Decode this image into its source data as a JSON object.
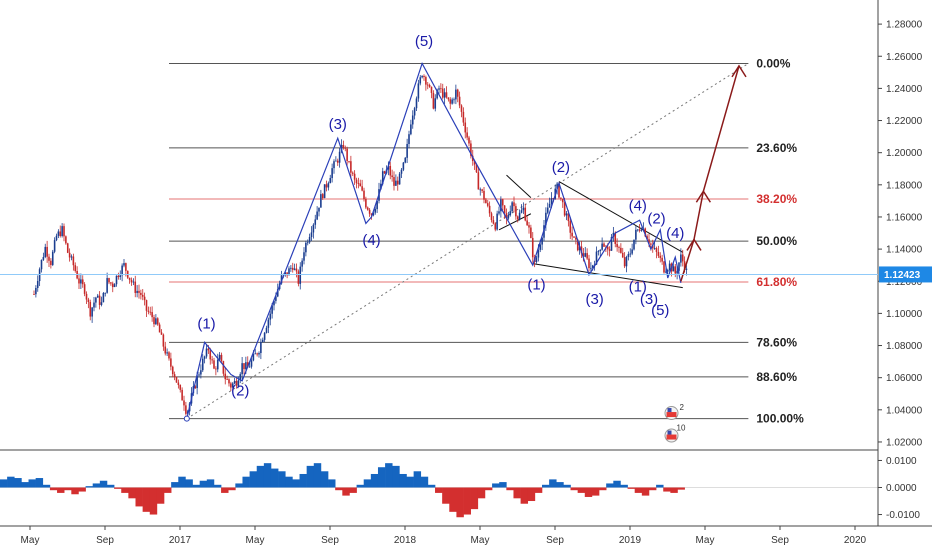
{
  "chart_data": {
    "type": "candlestick",
    "price_axis": {
      "ticks": [
        "1.28000",
        "1.26000",
        "1.24000",
        "1.22000",
        "1.20000",
        "1.18000",
        "1.16000",
        "1.14000",
        "1.12000",
        "1.10000",
        "1.08000",
        "1.06000",
        "1.04000",
        "1.02000"
      ],
      "ylim": [
        1.015,
        1.295
      ]
    },
    "current_price": {
      "label": "1.12423",
      "value": 1.12423,
      "color": "#1e88e5"
    },
    "time_axis": {
      "labels": [
        {
          "text": "May",
          "t": 0
        },
        {
          "text": "Sep",
          "t": 4
        },
        {
          "text": "2017",
          "t": 8
        },
        {
          "text": "May",
          "t": 12
        },
        {
          "text": "Sep",
          "t": 16
        },
        {
          "text": "2018",
          "t": 20
        },
        {
          "text": "May",
          "t": 24
        },
        {
          "text": "Sep",
          "t": 28
        },
        {
          "text": "2019",
          "t": 32
        },
        {
          "text": "May",
          "t": 36
        },
        {
          "text": "Sep",
          "t": 40
        },
        {
          "text": "2020",
          "t": 44
        }
      ]
    },
    "fib_levels": [
      {
        "label": "0.00%",
        "value": 1.2555,
        "color": "#555555",
        "text_color": "#222222"
      },
      {
        "label": "23.60%",
        "value": 1.203,
        "color": "#555555",
        "text_color": "#222222"
      },
      {
        "label": "38.20%",
        "value": 1.1712,
        "color": "#e57373",
        "text_color": "#d32f2f"
      },
      {
        "label": "50.00%",
        "value": 1.145,
        "color": "#555555",
        "text_color": "#222222"
      },
      {
        "label": "61.80%",
        "value": 1.1195,
        "color": "#e57373",
        "text_color": "#d32f2f"
      },
      {
        "label": "78.60%",
        "value": 1.082,
        "color": "#555555",
        "text_color": "#222222"
      },
      {
        "label": "88.60%",
        "value": 1.0605,
        "color": "#555555",
        "text_color": "#222222"
      },
      {
        "label": "100.00%",
        "value": 1.0345,
        "color": "#555555",
        "text_color": "#222222"
      }
    ],
    "price_path": [
      [
        0.0,
        1.112
      ],
      [
        0.3,
        1.128
      ],
      [
        0.6,
        1.141
      ],
      [
        0.9,
        1.132
      ],
      [
        1.2,
        1.148
      ],
      [
        1.5,
        1.152
      ],
      [
        1.8,
        1.138
      ],
      [
        2.1,
        1.13
      ],
      [
        2.4,
        1.12
      ],
      [
        2.7,
        1.115
      ],
      [
        3.0,
        1.101
      ],
      [
        3.3,
        1.11
      ],
      [
        3.6,
        1.106
      ],
      [
        3.9,
        1.12
      ],
      [
        4.2,
        1.118
      ],
      [
        4.5,
        1.125
      ],
      [
        4.8,
        1.13
      ],
      [
        5.1,
        1.122
      ],
      [
        5.4,
        1.115
      ],
      [
        5.7,
        1.112
      ],
      [
        6.0,
        1.102
      ],
      [
        6.3,
        1.098
      ],
      [
        6.6,
        1.092
      ],
      [
        6.9,
        1.08
      ],
      [
        7.2,
        1.07
      ],
      [
        7.5,
        1.062
      ],
      [
        7.8,
        1.05
      ],
      [
        8.0,
        1.045
      ],
      [
        8.15,
        1.038
      ],
      [
        8.4,
        1.048
      ],
      [
        8.7,
        1.06
      ],
      [
        9.0,
        1.07
      ],
      [
        9.3,
        1.078
      ],
      [
        9.6,
        1.065
      ],
      [
        9.9,
        1.072
      ],
      [
        10.2,
        1.06
      ],
      [
        10.5,
        1.055
      ],
      [
        10.8,
        1.058
      ],
      [
        11.1,
        1.068
      ],
      [
        11.4,
        1.066
      ],
      [
        11.7,
        1.072
      ],
      [
        12.0,
        1.078
      ],
      [
        12.3,
        1.09
      ],
      [
        12.6,
        1.1
      ],
      [
        12.9,
        1.112
      ],
      [
        13.2,
        1.122
      ],
      [
        13.5,
        1.125
      ],
      [
        13.8,
        1.13
      ],
      [
        14.1,
        1.12
      ],
      [
        14.4,
        1.14
      ],
      [
        14.7,
        1.15
      ],
      [
        15.0,
        1.16
      ],
      [
        15.3,
        1.172
      ],
      [
        15.6,
        1.18
      ],
      [
        15.9,
        1.19
      ],
      [
        16.2,
        1.196
      ],
      [
        16.5,
        1.205
      ],
      [
        16.8,
        1.192
      ],
      [
        17.1,
        1.182
      ],
      [
        17.4,
        1.178
      ],
      [
        17.7,
        1.168
      ],
      [
        18.0,
        1.162
      ],
      [
        18.3,
        1.17
      ],
      [
        18.6,
        1.186
      ],
      [
        18.9,
        1.19
      ],
      [
        19.2,
        1.18
      ],
      [
        19.5,
        1.184
      ],
      [
        19.8,
        1.195
      ],
      [
        20.1,
        1.22
      ],
      [
        20.4,
        1.236
      ],
      [
        20.7,
        1.25
      ],
      [
        21.0,
        1.243
      ],
      [
        21.3,
        1.23
      ],
      [
        21.6,
        1.24
      ],
      [
        21.9,
        1.235
      ],
      [
        22.2,
        1.23
      ],
      [
        22.5,
        1.238
      ],
      [
        22.8,
        1.225
      ],
      [
        23.1,
        1.21
      ],
      [
        23.4,
        1.195
      ],
      [
        23.7,
        1.18
      ],
      [
        24.0,
        1.172
      ],
      [
        24.3,
        1.162
      ],
      [
        24.6,
        1.155
      ],
      [
        24.9,
        1.168
      ],
      [
        25.2,
        1.158
      ],
      [
        25.5,
        1.17
      ],
      [
        25.8,
        1.16
      ],
      [
        26.1,
        1.165
      ],
      [
        26.4,
        1.152
      ],
      [
        26.7,
        1.13
      ],
      [
        27.0,
        1.145
      ],
      [
        27.3,
        1.16
      ],
      [
        27.6,
        1.172
      ],
      [
        27.9,
        1.178
      ],
      [
        28.2,
        1.168
      ],
      [
        28.5,
        1.155
      ],
      [
        28.8,
        1.145
      ],
      [
        29.1,
        1.14
      ],
      [
        29.4,
        1.135
      ],
      [
        29.7,
        1.128
      ],
      [
        30.0,
        1.136
      ],
      [
        30.3,
        1.145
      ],
      [
        30.6,
        1.138
      ],
      [
        30.9,
        1.148
      ],
      [
        31.2,
        1.14
      ],
      [
        31.5,
        1.13
      ],
      [
        31.8,
        1.138
      ],
      [
        32.1,
        1.15
      ],
      [
        32.4,
        1.155
      ],
      [
        32.7,
        1.148
      ],
      [
        33.0,
        1.14
      ],
      [
        33.3,
        1.136
      ],
      [
        33.6,
        1.128
      ],
      [
        33.9,
        1.13
      ],
      [
        34.2,
        1.125
      ],
      [
        34.5,
        1.135
      ],
      [
        34.7,
        1.13
      ],
      [
        34.9,
        1.122
      ]
    ],
    "wave_labels": [
      {
        "text": "(1)",
        "t": 9.2,
        "p": 1.0905
      },
      {
        "text": "(2)",
        "t": 11.0,
        "p": 1.049
      },
      {
        "text": "(3)",
        "t": 16.2,
        "p": 1.2148
      },
      {
        "text": "(4)",
        "t": 18.0,
        "p": 1.1425
      },
      {
        "text": "(5)",
        "t": 20.8,
        "p": 1.2665
      },
      {
        "text": "(1)",
        "t": 26.8,
        "p": 1.115
      },
      {
        "text": "(2)",
        "t": 28.1,
        "p": 1.188
      },
      {
        "text": "(3)",
        "t": 29.9,
        "p": 1.106
      },
      {
        "text": "(4)",
        "t": 32.2,
        "p": 1.164
      },
      {
        "text": "(2)",
        "t": 33.2,
        "p": 1.156
      },
      {
        "text": "(4)",
        "t": 34.2,
        "p": 1.147
      },
      {
        "text": "(1)",
        "t": 32.2,
        "p": 1.1135
      },
      {
        "text": "(3)",
        "t": 32.8,
        "p": 1.106
      },
      {
        "text": "(5)",
        "t": 33.4,
        "p": 1.099
      }
    ],
    "wave_path": [
      [
        8.15,
        1.0345
      ],
      [
        9.1,
        1.082
      ],
      [
        10.5,
        1.062
      ],
      [
        11.1,
        1.058
      ],
      [
        16.2,
        1.209
      ],
      [
        17.7,
        1.156
      ],
      [
        18.0,
        1.16
      ],
      [
        20.7,
        1.2555
      ],
      [
        23.5,
        1.195
      ],
      [
        26.6,
        1.13
      ],
      [
        28.0,
        1.181
      ],
      [
        29.6,
        1.124
      ],
      [
        31.0,
        1.15
      ],
      [
        32.3,
        1.158
      ],
      [
        32.9,
        1.14
      ],
      [
        33.4,
        1.152
      ],
      [
        33.8,
        1.122
      ],
      [
        34.2,
        1.135
      ],
      [
        34.5,
        1.119
      ]
    ],
    "oscillator": {
      "ticks": [
        "0.0100",
        "0.0000",
        "-0.0100"
      ],
      "ylim": [
        -0.0135,
        0.0135
      ],
      "values": [
        0.003,
        0.004,
        0.0035,
        0.002,
        0.003,
        0.0035,
        0.001,
        -0.001,
        -0.002,
        -0.001,
        -0.0025,
        -0.0015,
        0.0005,
        0.0015,
        0.0025,
        0.001,
        -0.0005,
        -0.002,
        -0.004,
        -0.007,
        -0.009,
        -0.01,
        -0.006,
        -0.002,
        0.002,
        0.004,
        0.003,
        0.001,
        0.0025,
        0.003,
        0.001,
        -0.002,
        -0.001,
        0.0015,
        0.004,
        0.006,
        0.008,
        0.009,
        0.007,
        0.006,
        0.004,
        0.003,
        0.005,
        0.008,
        0.009,
        0.006,
        0.003,
        -0.001,
        -0.003,
        -0.002,
        0.001,
        0.003,
        0.005,
        0.0075,
        0.009,
        0.008,
        0.005,
        0.004,
        0.006,
        0.004,
        0.001,
        -0.002,
        -0.006,
        -0.009,
        -0.011,
        -0.01,
        -0.008,
        -0.004,
        -0.001,
        0.0015,
        0.002,
        -0.001,
        -0.004,
        -0.006,
        -0.005,
        -0.002,
        0.001,
        0.003,
        0.002,
        0.001,
        -0.001,
        -0.002,
        -0.0035,
        -0.003,
        -0.001,
        0.0015,
        0.0025,
        0.001,
        -0.0005,
        -0.002,
        -0.003,
        -0.001,
        0.001,
        -0.0015,
        -0.002,
        -0.0008
      ]
    }
  }
}
